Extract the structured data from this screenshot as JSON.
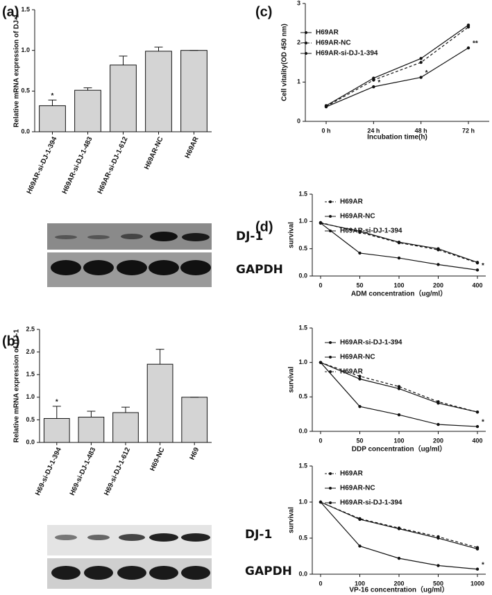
{
  "chart_data": [
    {
      "type": "bar",
      "panel_label": "(a)",
      "y_label": "Relative mRNA expression of DJ-1",
      "categories": [
        "H69AR-si-DJ-1-394",
        "H69AR-si-DJ-1-483",
        "H69AR-si-DJ-1-612",
        "H69AR-NC",
        "H69AR"
      ],
      "values": [
        0.32,
        0.51,
        0.82,
        0.99,
        1.0
      ],
      "errors": [
        0.07,
        0.03,
        0.11,
        0.05,
        0
      ],
      "annotations": [
        "*",
        null,
        null,
        null,
        null
      ],
      "color": "#d4d4d4",
      "ylim": [
        0,
        1.5
      ],
      "yticks": [
        {
          "value": 0,
          "label": "0.0"
        },
        {
          "value": 0.5,
          "label": "0.5"
        },
        {
          "value": 1,
          "label": "1.0"
        },
        {
          "value": 1.5,
          "label": "1.5"
        }
      ]
    },
    {
      "type": "bar",
      "panel_label": "(b)",
      "y_label": "Relative mRNA expression of DJ-1",
      "categories": [
        "H69-si-DJ-1-394",
        "H69-si-DJ-1-483",
        "H69-si-DJ-1-612",
        "H69-NC",
        "H69"
      ],
      "values": [
        0.53,
        0.56,
        0.66,
        1.73,
        1.0
      ],
      "errors": [
        0.27,
        0.13,
        0.12,
        0.33,
        0
      ],
      "annotations": [
        "*",
        null,
        null,
        null,
        null
      ],
      "color": "#d4d4d4",
      "ylim": [
        0,
        2.5
      ],
      "yticks": [
        {
          "value": 0,
          "label": "0.0"
        },
        {
          "value": 0.5,
          "label": "0.5"
        },
        {
          "value": 1,
          "label": "1.0"
        },
        {
          "value": 1.5,
          "label": "1.5"
        },
        {
          "value": 2,
          "label": "2.0"
        },
        {
          "value": 2.5,
          "label": "2.5"
        }
      ]
    },
    {
      "type": "line",
      "panel_label": "(c)",
      "y_label": "Cell vitality(OD 450 nm)",
      "x_label": "Incubation time(h)",
      "categories": [
        "0 h",
        "24 h",
        "48 h",
        "72 h"
      ],
      "legend": "upper left",
      "series": [
        {
          "name": "H69AR",
          "color": "#111111",
          "dashed": false,
          "values": [
            0.4,
            1.1,
            1.6,
            2.45
          ],
          "point_labels": [
            null,
            null,
            null,
            null
          ]
        },
        {
          "name": "H69AR-NC",
          "color": "#111111",
          "dashed": true,
          "values": [
            0.38,
            1.05,
            1.5,
            2.4
          ],
          "point_labels": [
            null,
            null,
            null,
            null
          ]
        },
        {
          "name": "H69AR-si-DJ-1-394",
          "color": "#111111",
          "dashed": false,
          "values": [
            0.37,
            0.88,
            1.12,
            1.87
          ],
          "point_labels": [
            null,
            "*",
            "*",
            "**"
          ]
        }
      ],
      "ylim": [
        0,
        3
      ],
      "yticks": [
        0,
        1,
        2,
        3
      ]
    },
    {
      "type": "line",
      "panel_label": "(d)",
      "y_label": "survival",
      "x_label": "ADM  concentration（ug/ml）",
      "categories": [
        "0",
        "50",
        "100",
        "200",
        "400"
      ],
      "legend": "upper left",
      "series": [
        {
          "name": "H69AR",
          "color": "#111111",
          "dashed": true,
          "values": [
            0.98,
            0.8,
            0.61,
            0.48,
            0.24
          ],
          "point_labels": [
            null,
            null,
            null,
            null,
            null
          ]
        },
        {
          "name": "H69AR-NC",
          "color": "#111111",
          "dashed": false,
          "values": [
            0.97,
            0.82,
            0.62,
            0.5,
            0.25
          ],
          "point_labels": [
            null,
            null,
            null,
            null,
            null
          ]
        },
        {
          "name": "H69AR-si-DJ-1-394",
          "color": "#111111",
          "dashed": false,
          "values": [
            0.97,
            0.42,
            0.33,
            0.21,
            0.11
          ],
          "point_labels": [
            null,
            null,
            null,
            null,
            "*"
          ]
        }
      ],
      "ylim": [
        0,
        1.5
      ],
      "yticks": [
        {
          "value": 0,
          "label": "0.0"
        },
        {
          "value": 0.5,
          "label": "0.5"
        },
        {
          "value": 1,
          "label": "1.0"
        },
        {
          "value": 1.5,
          "label": "1.5"
        }
      ]
    },
    {
      "type": "line",
      "y_label": "survival",
      "x_label": "DDP concentration（ug/ml）",
      "categories": [
        "0",
        "50",
        "100",
        "200",
        "400"
      ],
      "legend": "upper left",
      "series": [
        {
          "name": "H69AR-si-DJ-1-394",
          "color": "#111111",
          "dashed": false,
          "values": [
            1.0,
            0.36,
            0.24,
            0.1,
            0.07
          ],
          "point_labels": [
            null,
            null,
            null,
            null,
            "*"
          ]
        },
        {
          "name": "H69AR-NC",
          "color": "#111111",
          "dashed": false,
          "values": [
            1.0,
            0.76,
            0.62,
            0.41,
            0.28
          ],
          "point_labels": [
            null,
            null,
            null,
            null,
            null
          ]
        },
        {
          "name": "H69AR",
          "color": "#111111",
          "dashed": true,
          "values": [
            1.0,
            0.8,
            0.65,
            0.43,
            0.28
          ],
          "point_labels": [
            null,
            null,
            null,
            null,
            null
          ]
        }
      ],
      "ylim": [
        0,
        1.5
      ],
      "yticks": [
        {
          "value": 0,
          "label": "0.0"
        },
        {
          "value": 0.5,
          "label": "0.5"
        },
        {
          "value": 1,
          "label": "1.0"
        },
        {
          "value": 1.5,
          "label": "1.5"
        }
      ]
    },
    {
      "type": "line",
      "y_label": "survival",
      "x_label": "VP-16  concentration（ug/ml）",
      "categories": [
        "0",
        "100",
        "200",
        "500",
        "1000"
      ],
      "legend": "upper left",
      "series": [
        {
          "name": "H69AR",
          "color": "#111111",
          "dashed": true,
          "values": [
            1.0,
            0.77,
            0.64,
            0.52,
            0.37
          ],
          "point_labels": [
            null,
            null,
            null,
            null,
            null
          ]
        },
        {
          "name": "H69AR-NC",
          "color": "#111111",
          "dashed": false,
          "values": [
            1.0,
            0.76,
            0.63,
            0.5,
            0.35
          ],
          "point_labels": [
            null,
            null,
            null,
            null,
            null
          ]
        },
        {
          "name": "H69AR-si-DJ-1-394",
          "color": "#111111",
          "dashed": false,
          "values": [
            1.0,
            0.39,
            0.22,
            0.12,
            0.07
          ],
          "point_labels": [
            null,
            null,
            null,
            null,
            "*"
          ]
        }
      ],
      "ylim": [
        0,
        1.5
      ],
      "yticks": [
        {
          "value": 0,
          "label": "0.0"
        },
        {
          "value": 0.5,
          "label": "0.5"
        },
        {
          "value": 1,
          "label": "1.0"
        },
        {
          "value": 1.5,
          "label": "1.5"
        }
      ]
    }
  ],
  "blots": [
    {
      "labels": [
        "DJ-1",
        "GAPDH"
      ]
    },
    {
      "labels": [
        "DJ-1",
        "GAPDH"
      ]
    }
  ]
}
